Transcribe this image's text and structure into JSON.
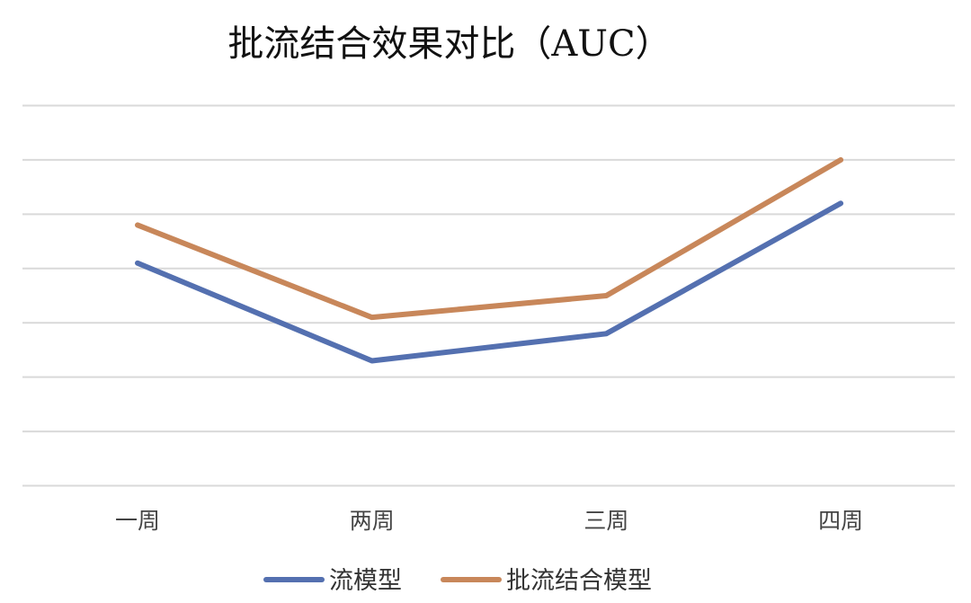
{
  "chart_data": {
    "type": "line",
    "title": "批流结合效果对比（AUC）",
    "categories": [
      "一周",
      "两周",
      "三周",
      "四周"
    ],
    "series": [
      {
        "name": "流模型",
        "color": "#5470B0",
        "values": [
          4.1,
          2.3,
          2.8,
          5.2
        ]
      },
      {
        "name": "批流结合模型",
        "color": "#C8875A",
        "values": [
          4.8,
          3.1,
          3.5,
          6.0
        ]
      }
    ],
    "ylim": [
      0,
      7
    ],
    "grid": true,
    "y_tick_labels_shown": false,
    "legend": "bottom-center",
    "gridline_color": "#d9d9d9"
  }
}
